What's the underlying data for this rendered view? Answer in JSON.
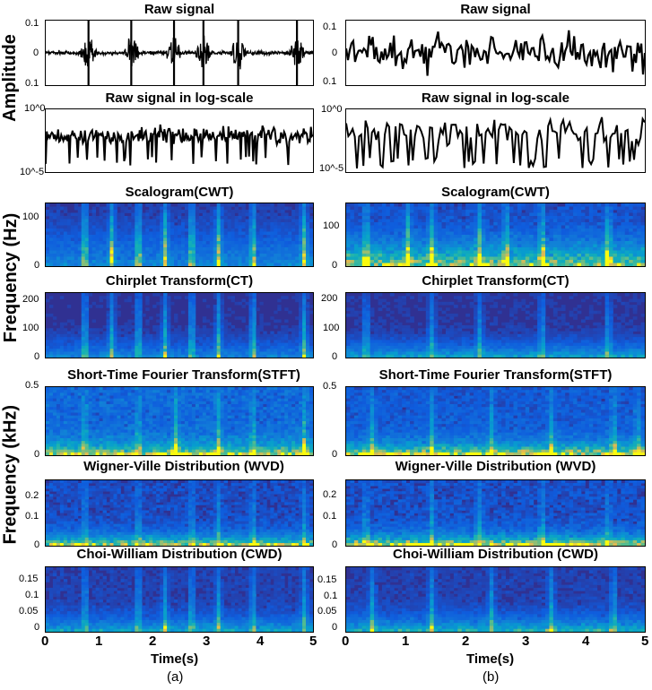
{
  "figure": {
    "ylabels": {
      "amplitude": "Amplitude",
      "frequency_hz": "Frequency (Hz)",
      "frequency_khz": "Frequency (kHz)"
    },
    "xlabel": "Time(s)",
    "xticks": [
      "0",
      "1",
      "2",
      "3",
      "4",
      "5"
    ],
    "panel_captions": [
      "(a)",
      "(b)"
    ]
  },
  "chart_data": [
    {
      "type": "line",
      "title": "Raw signal",
      "xlim": [
        0,
        5
      ],
      "ylim": [
        -0.1,
        0.1
      ],
      "yticks": [
        "0.1",
        "0",
        "0.1"
      ],
      "panel": "a",
      "impulse_times": [
        0.6,
        1.6,
        2.4,
        3.2,
        4.0,
        4.8
      ]
    },
    {
      "type": "line",
      "title": "Raw signal",
      "xlim": [
        0,
        5
      ],
      "ylim": [
        -0.1,
        0.1
      ],
      "yticks": [
        "0.1",
        "0",
        "0.1"
      ],
      "panel": "b"
    },
    {
      "type": "line",
      "title": "Raw signal in log-scale",
      "xlim": [
        0,
        5
      ],
      "yscale": "log",
      "ylim": [
        1e-05,
        1
      ],
      "yticks": [
        "10^0",
        "10^-5"
      ],
      "panel": "a"
    },
    {
      "type": "line",
      "title": "Raw signal in log-scale",
      "xlim": [
        0,
        5
      ],
      "yscale": "log",
      "ylim": [
        1e-05,
        1
      ],
      "yticks": [
        "10^0",
        "10^-5"
      ],
      "panel": "b"
    },
    {
      "type": "heatmap",
      "title": "Scalogram(CWT)",
      "xlim": [
        0,
        5
      ],
      "ylim": [
        0,
        140
      ],
      "yticks": [
        "100",
        "50",
        "0"
      ],
      "ylabel": "Frequency (Hz)",
      "panel": "a"
    },
    {
      "type": "heatmap",
      "title": "Scalogram(CWT)",
      "xlim": [
        0,
        5
      ],
      "ylim": [
        0,
        140
      ],
      "yticks": [
        "100",
        "50",
        "0"
      ],
      "panel": "b"
    },
    {
      "type": "heatmap",
      "title": "Chirplet Transform(CT)",
      "xlim": [
        0,
        5
      ],
      "ylim": [
        0,
        230
      ],
      "yticks": [
        "200",
        "100",
        "0"
      ],
      "panel": "a"
    },
    {
      "type": "heatmap",
      "title": "Chirplet Transform(CT)",
      "xlim": [
        0,
        5
      ],
      "ylim": [
        0,
        230
      ],
      "yticks": [
        "200",
        "100",
        "0"
      ],
      "panel": "b"
    },
    {
      "type": "heatmap",
      "title": "Short-Time Fourier Transform(STFT)",
      "xlim": [
        0,
        5
      ],
      "ylim": [
        0,
        0.5
      ],
      "yticks": [
        "0.5",
        "0"
      ],
      "ylabel": "Frequency (kHz)",
      "panel": "a"
    },
    {
      "type": "heatmap",
      "title": "Short-Time Fourier Transform(STFT)",
      "xlim": [
        0,
        5
      ],
      "ylim": [
        0,
        0.5
      ],
      "yticks": [
        "0.5",
        "0"
      ],
      "panel": "b"
    },
    {
      "type": "heatmap",
      "title": "Wigner-Ville Distribution (WVD)",
      "xlim": [
        0,
        5
      ],
      "ylim": [
        0,
        0.22
      ],
      "yticks": [
        "0.2",
        "0.1",
        "0"
      ],
      "panel": "a"
    },
    {
      "type": "heatmap",
      "title": "Wigner-Ville Distribution (WVD)",
      "xlim": [
        0,
        5
      ],
      "ylim": [
        0,
        0.22
      ],
      "yticks": [
        "0.2",
        "0.1",
        "0"
      ],
      "panel": "b"
    },
    {
      "type": "heatmap",
      "title": "Choi-William Distribution (CWD)",
      "xlim": [
        0,
        5
      ],
      "ylim": [
        0,
        0.19
      ],
      "yticks": [
        "0.15",
        "0.1",
        "0.05",
        "0"
      ],
      "panel": "a"
    },
    {
      "type": "heatmap",
      "title": "Choi-William Distribution (CWD)",
      "xlim": [
        0,
        5
      ],
      "ylim": [
        0,
        0.19
      ],
      "yticks": [
        "0.15",
        "0.1",
        "0.05",
        "0"
      ],
      "panel": "b"
    }
  ]
}
